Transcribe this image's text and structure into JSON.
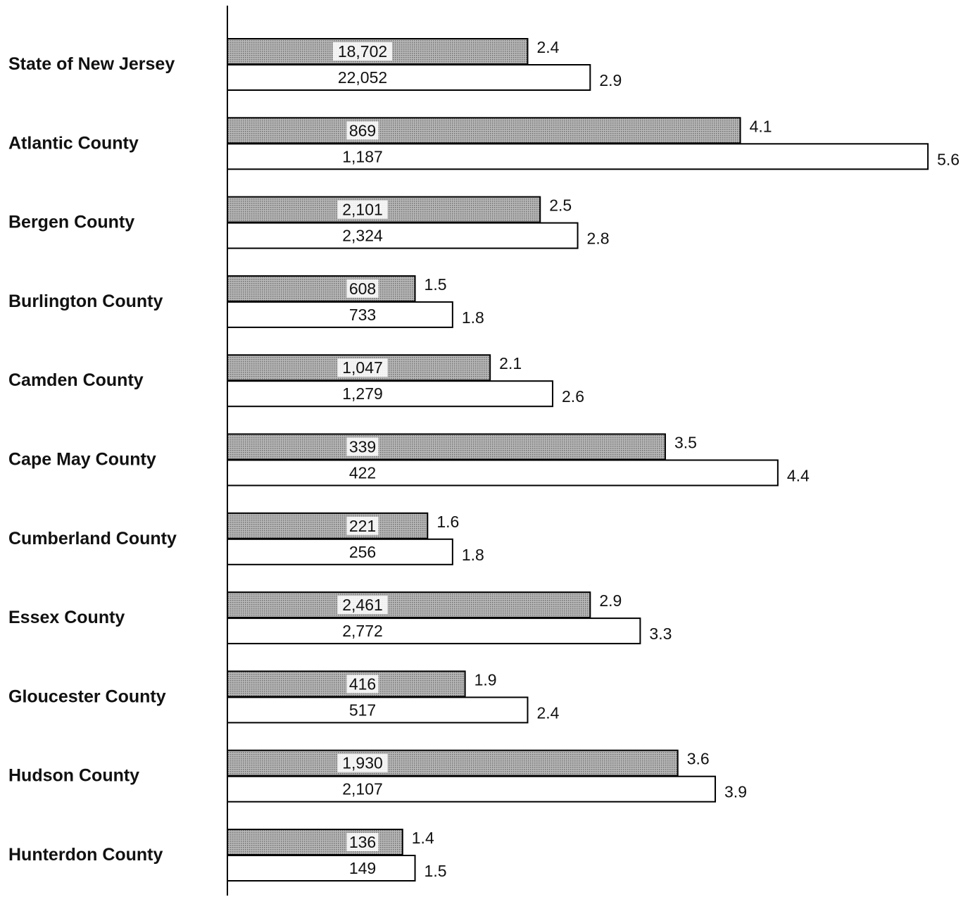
{
  "chart_data": {
    "type": "bar",
    "orientation": "horizontal",
    "categories": [
      "State of New Jersey",
      "Atlantic County",
      "Bergen County",
      "Burlington County",
      "Camden County",
      "Cape May County",
      "Cumberland County",
      "Essex County",
      "Gloucester County",
      "Hudson County",
      "Hunterdon County"
    ],
    "series": [
      {
        "style": "shaded",
        "color": "#a8a8a8",
        "counts": [
          "18,702",
          "869",
          "2,101",
          "608",
          "1,047",
          "339",
          "221",
          "2,461",
          "416",
          "1,930",
          "136"
        ],
        "values": [
          2.4,
          4.1,
          2.5,
          1.5,
          2.1,
          3.5,
          1.6,
          2.9,
          1.9,
          3.6,
          1.4
        ]
      },
      {
        "style": "white",
        "color": "#ffffff",
        "counts": [
          "22,052",
          "1,187",
          "2,324",
          "733",
          "1,279",
          "422",
          "256",
          "2,772",
          "517",
          "2,107",
          "149"
        ],
        "values": [
          2.9,
          5.6,
          2.8,
          1.8,
          2.6,
          4.4,
          1.8,
          3.3,
          2.4,
          3.9,
          1.5
        ]
      }
    ],
    "xlim": [
      0,
      5.6
    ],
    "grid": false,
    "legend": "none"
  }
}
